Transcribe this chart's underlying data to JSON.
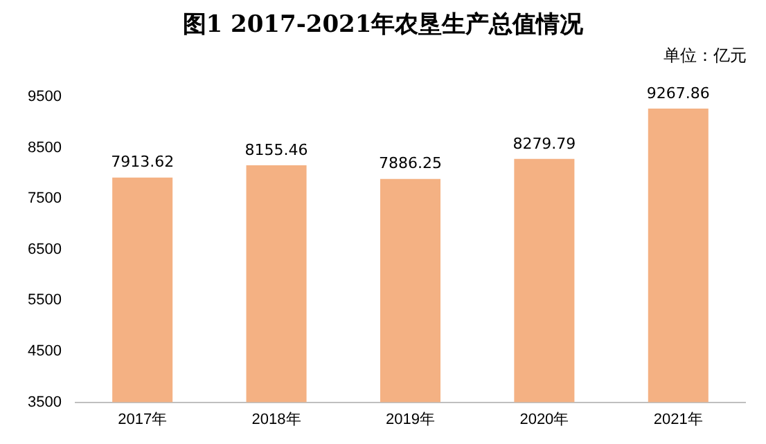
{
  "chart_data": {
    "type": "bar",
    "title": "图1 2017-2021年农垦生产总值情况",
    "annotations": [
      "单位：亿元"
    ],
    "categories": [
      "2017年",
      "2018年",
      "2019年",
      "2020年",
      "2021年"
    ],
    "values": [
      7913.62,
      8155.46,
      7886.25,
      8279.79,
      9267.86
    ],
    "color": "#f4b183",
    "ylim": [
      3500,
      9500
    ],
    "yticks": [
      3500,
      4500,
      5500,
      6500,
      7500,
      8500,
      9500
    ],
    "grid": false,
    "legend": false,
    "data_labels": true
  }
}
